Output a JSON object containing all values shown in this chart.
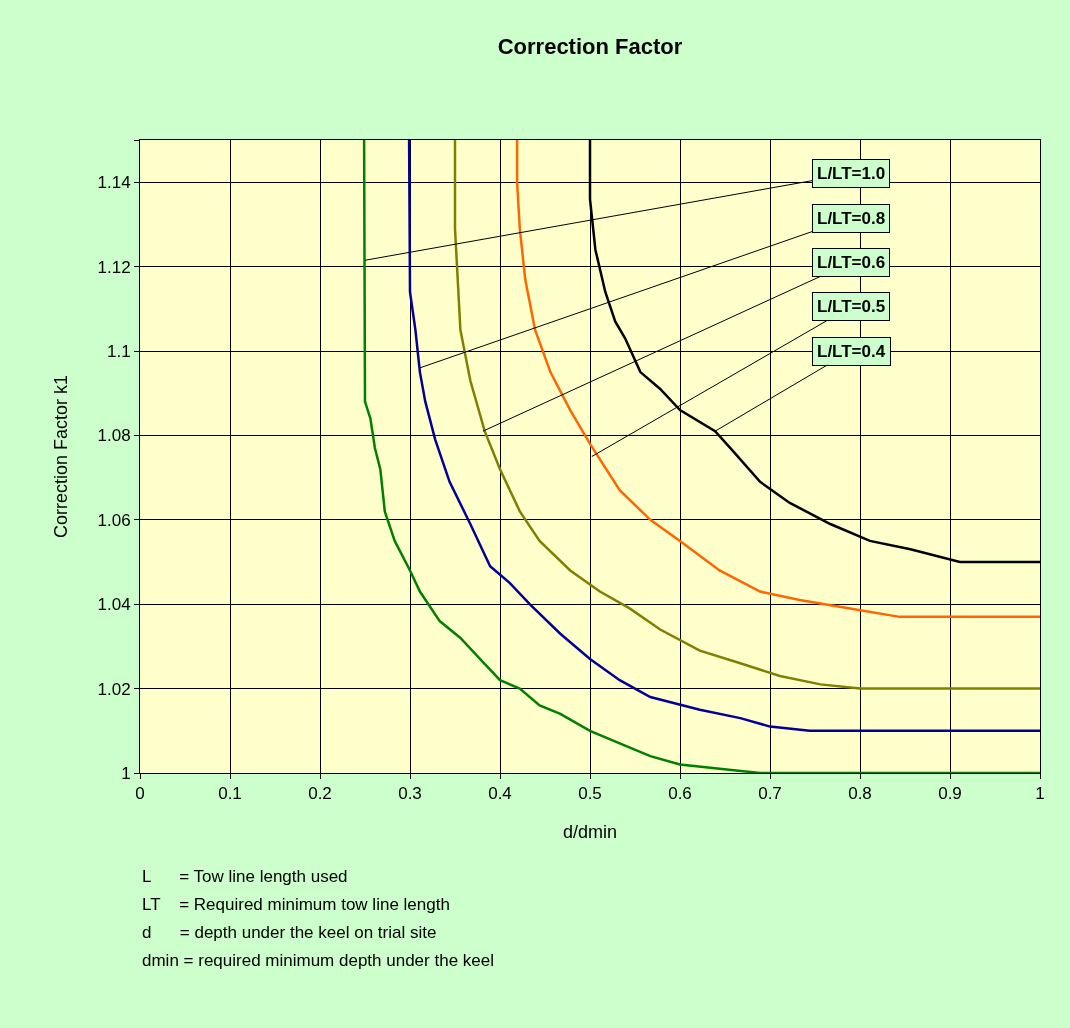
{
  "chart_data": {
    "type": "line",
    "title": "Correction Factor",
    "xlabel": "d/dmin",
    "ylabel": "Correction Factor k1",
    "xlim": [
      0,
      1
    ],
    "xticks": [
      0,
      0.1,
      0.2,
      0.3,
      0.4,
      0.5,
      0.6,
      0.7,
      0.8,
      0.9,
      1
    ],
    "ylim": [
      1,
      1.15
    ],
    "yticks": [
      1,
      1.02,
      1.04,
      1.06,
      1.08,
      1.1,
      1.12,
      1.14,
      {
        "value": 1.15,
        "label": null
      }
    ],
    "grid": true,
    "series": [
      {
        "color": "#008000",
        "x": [
          0.249,
          0.25,
          0.256,
          0.261,
          0.267,
          0.272,
          0.283,
          0.3,
          0.311,
          0.333,
          0.356,
          0.378,
          0.4,
          0.422,
          0.444,
          0.467,
          0.5,
          0.533,
          0.567,
          0.6,
          0.644,
          0.689,
          1.0
        ],
        "values": [
          1.15,
          1.088,
          1.084,
          1.077,
          1.072,
          1.062,
          1.055,
          1.048,
          1.043,
          1.036,
          1.032,
          1.027,
          1.022,
          1.02,
          1.016,
          1.014,
          1.01,
          1.007,
          1.004,
          1.002,
          1.001,
          1.0,
          1.0
        ]
      },
      {
        "color": "#000099",
        "x": [
          0.299,
          0.3,
          0.306,
          0.311,
          0.317,
          0.328,
          0.344,
          0.367,
          0.389,
          0.411,
          0.433,
          0.467,
          0.5,
          0.533,
          0.567,
          0.622,
          0.667,
          0.7,
          0.744,
          0.767,
          1.0
        ],
        "values": [
          1.15,
          1.114,
          1.105,
          1.095,
          1.088,
          1.079,
          1.069,
          1.059,
          1.049,
          1.045,
          1.04,
          1.033,
          1.027,
          1.022,
          1.018,
          1.015,
          1.013,
          1.011,
          1.01,
          1.01,
          1.01
        ]
      },
      {
        "color": "#808000",
        "x": [
          0.35,
          0.35,
          0.356,
          0.367,
          0.383,
          0.4,
          0.422,
          0.444,
          0.478,
          0.511,
          0.544,
          0.578,
          0.622,
          0.667,
          0.711,
          0.756,
          0.8,
          1.0
        ],
        "values": [
          1.15,
          1.129,
          1.105,
          1.093,
          1.081,
          1.072,
          1.062,
          1.055,
          1.048,
          1.043,
          1.039,
          1.034,
          1.029,
          1.026,
          1.023,
          1.021,
          1.02,
          1.02
        ]
      },
      {
        "color": "#ff6600",
        "x": [
          0.419,
          0.419,
          0.422,
          0.428,
          0.439,
          0.456,
          0.478,
          0.5,
          0.533,
          0.567,
          0.6,
          0.644,
          0.689,
          0.733,
          0.789,
          0.844,
          1.0
        ],
        "values": [
          1.15,
          1.14,
          1.129,
          1.117,
          1.105,
          1.095,
          1.086,
          1.078,
          1.067,
          1.06,
          1.055,
          1.048,
          1.043,
          1.041,
          1.039,
          1.037,
          1.037
        ]
      },
      {
        "color": "#000000",
        "x": [
          0.5,
          0.5,
          0.506,
          0.517,
          0.528,
          0.539,
          0.556,
          0.578,
          0.6,
          0.639,
          0.656,
          0.689,
          0.722,
          0.767,
          0.811,
          0.856,
          0.911,
          1.0
        ],
        "values": [
          1.15,
          1.136,
          1.124,
          1.114,
          1.107,
          1.103,
          1.095,
          1.091,
          1.086,
          1.081,
          1.077,
          1.069,
          1.064,
          1.059,
          1.055,
          1.053,
          1.05,
          1.05
        ]
      }
    ],
    "annotations": [
      {
        "text": "L/LT=1.0",
        "x": 0.25,
        "y": 1.1215
      },
      {
        "text": "L/LT=0.8",
        "x": 0.311,
        "y": 1.096
      },
      {
        "text": "L/LT=0.6",
        "x": 0.381,
        "y": 1.081
      },
      {
        "text": "L/LT=0.5",
        "x": 0.502,
        "y": 1.075
      },
      {
        "text": "L/LT=0.4",
        "x": 0.639,
        "y": 1.081
      },
      "L      = Tow line length used",
      "LT    = Required minimum tow line length",
      "d      = depth under the keel on trial site",
      "dmin = required minimum depth under the keel"
    ]
  }
}
